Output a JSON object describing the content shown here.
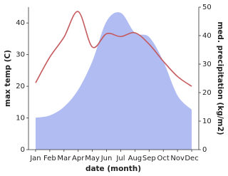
{
  "chart_data": {
    "type": "line",
    "xlabel": "date (month)",
    "ylabel": "max temp (C)",
    "y2label": "med. precipitation (kg/m2)",
    "categories": [
      "Jan",
      "Feb",
      "Mar",
      "Apr",
      "May",
      "Jun",
      "Jul",
      "Aug",
      "Sep",
      "Oct",
      "Nov",
      "Dec"
    ],
    "series": [
      {
        "name": "med. precipitation",
        "kind": "area",
        "axis": "y2",
        "color": "#b0bcf2",
        "values": [
          11.2,
          12,
          15,
          21,
          31,
          45,
          48,
          41,
          39.5,
          31,
          19,
          14
        ]
      },
      {
        "name": "max temp",
        "kind": "line",
        "color": "#c55a5e",
        "values": [
          21.1,
          29.2,
          35.5,
          43.6,
          32.4,
          36.6,
          35.7,
          36.9,
          33.3,
          27.9,
          23.1,
          20.0
        ]
      }
    ],
    "ylim": [
      0,
      45
    ],
    "yticks": [
      0,
      10,
      20,
      30,
      40
    ],
    "y2lim": [
      0,
      50
    ],
    "y2ticks": [
      0,
      10,
      20,
      30,
      40,
      50
    ]
  }
}
